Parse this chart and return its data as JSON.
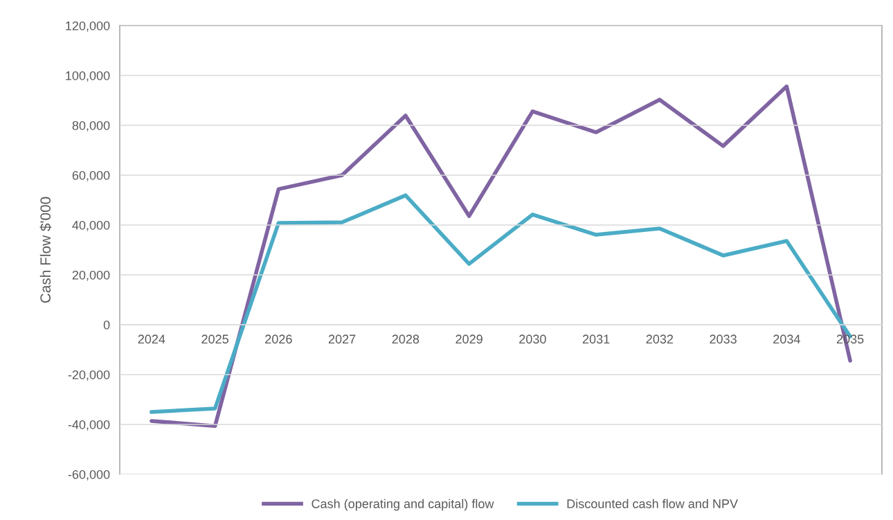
{
  "chart_data": {
    "type": "line",
    "ylabel": "Cash Flow $'000",
    "categories": [
      "2024",
      "2025",
      "2026",
      "2027",
      "2028",
      "2029",
      "2030",
      "2031",
      "2032",
      "2033",
      "2034",
      "2035"
    ],
    "series": [
      {
        "name": "Cash (operating and capital) flow",
        "color": "#8064a2",
        "values": [
          -38600,
          -40600,
          54400,
          60000,
          83900,
          43600,
          85600,
          77200,
          90300,
          71700,
          95600,
          -14400
        ]
      },
      {
        "name": "Discounted cash flow and NPV",
        "color": "#4bacc6",
        "values": [
          -35000,
          -33600,
          40800,
          41100,
          51900,
          24400,
          44200,
          36100,
          38600,
          27800,
          33600,
          -4700
        ]
      }
    ],
    "ylim": [
      -60000,
      120000
    ],
    "yticks": [
      {
        "value": -60000,
        "label": "-60,000"
      },
      {
        "value": -40000,
        "label": "-40,000"
      },
      {
        "value": -20000,
        "label": "-20,000"
      },
      0,
      {
        "value": 20000,
        "label": "20,000"
      },
      {
        "value": 40000,
        "label": "40,000"
      },
      {
        "value": 60000,
        "label": "60,000"
      },
      {
        "value": 80000,
        "label": "80,000"
      },
      {
        "value": 100000,
        "label": "100,000"
      },
      {
        "value": 120000,
        "label": "120,000"
      }
    ],
    "grid": "y",
    "legend": "bottom",
    "marker": "none",
    "line_style": "solid"
  }
}
